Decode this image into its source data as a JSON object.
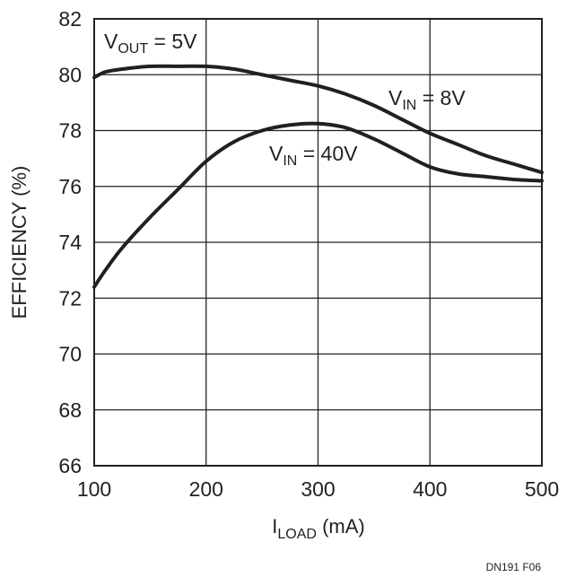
{
  "chart_data": {
    "type": "line",
    "xlabel": {
      "main": "I",
      "sub": "LOAD",
      "rest": " (mA)"
    },
    "ylabel": "EFFICIENCY (%)",
    "xlim": [
      100,
      500
    ],
    "ylim": [
      66,
      82
    ],
    "xticks": [
      100,
      200,
      300,
      400,
      500
    ],
    "yticks": [
      66,
      68,
      70,
      72,
      74,
      76,
      78,
      80,
      82
    ],
    "grid": true,
    "series": [
      {
        "name": "VIN = 8V",
        "x": [
          100,
          110,
          125,
          150,
          175,
          200,
          225,
          250,
          275,
          300,
          325,
          350,
          375,
          400,
          425,
          450,
          475,
          500
        ],
        "values": [
          79.9,
          80.1,
          80.2,
          80.3,
          80.3,
          80.3,
          80.2,
          80.0,
          79.8,
          79.6,
          79.3,
          78.9,
          78.4,
          77.9,
          77.5,
          77.1,
          76.8,
          76.5
        ]
      },
      {
        "name": "VIN = 40V",
        "x": [
          100,
          110,
          125,
          150,
          175,
          200,
          225,
          250,
          275,
          300,
          325,
          350,
          375,
          400,
          425,
          450,
          475,
          500
        ],
        "values": [
          72.4,
          73.0,
          73.8,
          74.9,
          75.9,
          76.9,
          77.6,
          78.0,
          78.2,
          78.25,
          78.1,
          77.7,
          77.2,
          76.7,
          76.45,
          76.35,
          76.25,
          76.2
        ]
      }
    ],
    "annotations": [
      {
        "main": "V",
        "sub": "OUT",
        "rest": " = 5V"
      },
      {
        "main": "V",
        "sub": "IN",
        "rest": " = 8V"
      },
      {
        "main": "V",
        "sub": "IN",
        "rest": " = 40V"
      }
    ],
    "footnote": "DN191 F06"
  }
}
